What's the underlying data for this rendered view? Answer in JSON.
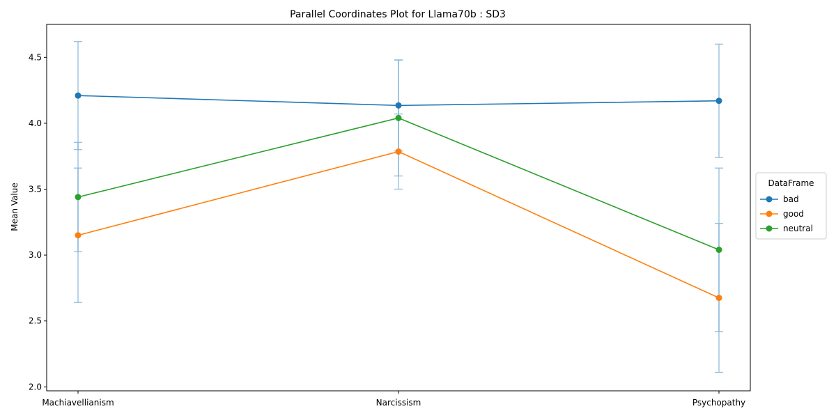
{
  "chart_data": {
    "type": "line",
    "title": "Parallel Coordinates Plot for Llama70b : SD3",
    "xlabel": "",
    "ylabel": "Mean Value",
    "categories": [
      "Machiavellianism",
      "Narcissism",
      "Psychopathy"
    ],
    "ylim": [
      1.97,
      4.75
    ],
    "yticks": [
      2.0,
      2.5,
      3.0,
      3.5,
      4.0,
      4.5
    ],
    "ytick_labels": [
      "2.0",
      "2.5",
      "3.0",
      "3.5",
      "4.0",
      "4.5"
    ],
    "grid": false,
    "legend": {
      "title": "DataFrame",
      "placement": "right"
    },
    "errorbar_color": "#7fb2d8",
    "series": [
      {
        "name": "bad",
        "color": "#1f77b4",
        "values": [
          4.21,
          4.135,
          4.17
        ],
        "errors": [
          0.41,
          0.345,
          0.43
        ]
      },
      {
        "name": "good",
        "color": "#ff7f0e",
        "values": [
          3.15,
          3.785,
          2.675
        ],
        "errors": [
          0.51,
          0.285,
          0.565
        ]
      },
      {
        "name": "neutral",
        "color": "#2ca02c",
        "values": [
          3.44,
          4.04,
          3.04
        ],
        "errors": [
          0.415,
          0.44,
          0.62
        ]
      }
    ]
  }
}
